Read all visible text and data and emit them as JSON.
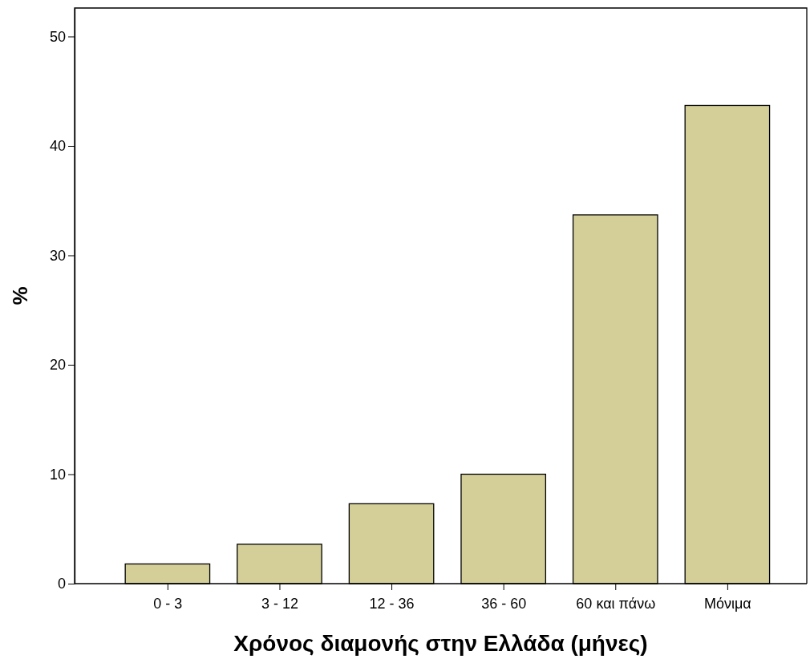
{
  "chart_data": {
    "type": "bar",
    "xlabel": "Χρόνος διαμονής στην Ελλάδα (μήνες)",
    "ylabel": "%",
    "categories": [
      "0 - 3",
      "3 - 12",
      "12 - 36",
      "36 - 60",
      "60 και πάνω",
      "Μόνιμα"
    ],
    "values": [
      1.8,
      3.6,
      7.3,
      10.0,
      33.7,
      43.7
    ],
    "color": "#d4cf99",
    "ylim": [
      0,
      52.6
    ],
    "yticks": [
      0,
      10,
      20,
      30,
      40,
      50
    ]
  }
}
